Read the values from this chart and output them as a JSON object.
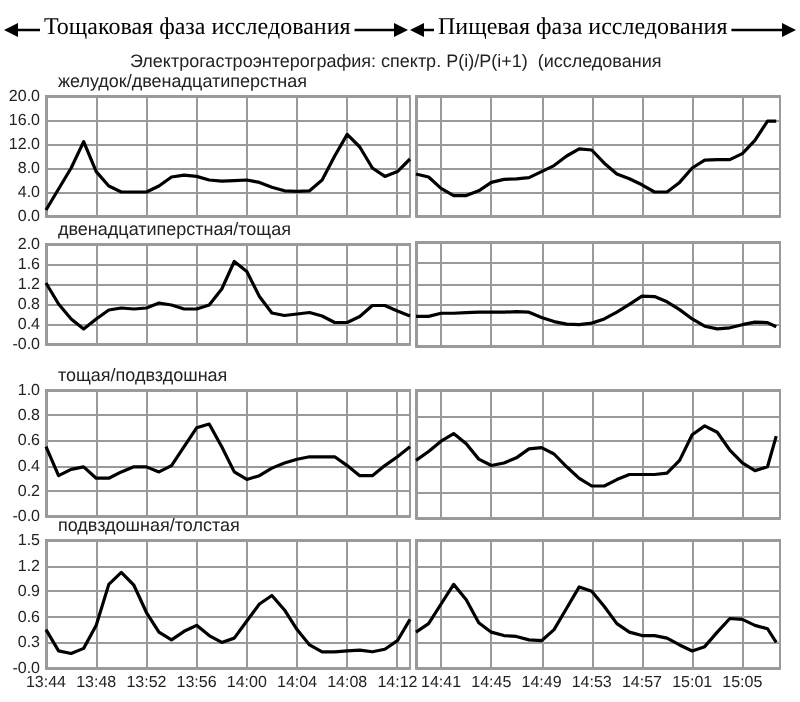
{
  "chart_data": [
    {
      "type": "line",
      "title": "Тощаковая фаза исследования",
      "subtitle": "Электрогастроэнтерография: спектр. P(i)/P(i+1)  (исследования",
      "ylabel": "желудок/двенадцатиперстная",
      "color": "#000000",
      "marker": "none",
      "grid": true,
      "tick_labels": "y",
      "x": [
        13.7333,
        13.75,
        13.7667,
        13.7833,
        13.8,
        13.8167,
        13.8333,
        13.85,
        13.8667,
        13.8833,
        13.9,
        13.9167,
        13.9333,
        13.95,
        13.9667,
        13.9833,
        14,
        14.0167,
        14.0333,
        14.05,
        14.0667,
        14.0833,
        14.1,
        14.1167,
        14.1333,
        14.15,
        14.1667,
        14.1833,
        14.2,
        14.2167
      ],
      "values": [
        1.0,
        4.5,
        8.0,
        12.4,
        7.4,
        5.0,
        4.0,
        4.0,
        4.0,
        5.0,
        6.5,
        6.8,
        6.6,
        6.0,
        5.8,
        5.9,
        6.0,
        5.6,
        4.8,
        4.2,
        4.1,
        4.2,
        6.0,
        10.0,
        13.6,
        11.5,
        8.0,
        6.6,
        7.4,
        9.5
      ],
      "xlim": [
        13.7333,
        14.2167
      ],
      "xticks": [
        13.7333,
        13.8,
        13.8667,
        13.9333,
        14,
        14.0667,
        14.1333,
        14.2
      ],
      "ylim": [
        0,
        20
      ],
      "yticks": [
        {
          "value": 0,
          "label": "0.0"
        },
        {
          "value": 4,
          "label": "4.0"
        },
        {
          "value": 8,
          "label": "8.0"
        },
        {
          "value": 12,
          "label": "12.0"
        },
        {
          "value": 16,
          "label": "16.0"
        },
        {
          "value": 20,
          "label": "20.0"
        }
      ]
    },
    {
      "type": "line",
      "title": "Пищевая фаза исследования",
      "color": "#000000",
      "marker": "none",
      "grid": true,
      "tick_labels": false,
      "x": [
        14.65,
        14.6667,
        14.6833,
        14.7,
        14.7167,
        14.7333,
        14.75,
        14.7667,
        14.7833,
        14.8,
        14.8167,
        14.8333,
        14.85,
        14.8667,
        14.8833,
        14.9,
        14.9167,
        14.9333,
        14.95,
        14.9667,
        14.9833,
        15,
        15.0167,
        15.0333,
        15.05,
        15.0667,
        15.0833,
        15.1,
        15.1167,
        15.1283
      ],
      "values": [
        7.0,
        6.5,
        4.6,
        3.4,
        3.4,
        4.2,
        5.6,
        6.1,
        6.2,
        6.4,
        7.4,
        8.4,
        10.0,
        11.2,
        11.0,
        8.8,
        7.0,
        6.2,
        5.2,
        4.0,
        4.0,
        5.6,
        8.0,
        9.3,
        9.4,
        9.4,
        10.4,
        12.6,
        15.8,
        15.8
      ],
      "xlim": [
        14.65,
        15.1333
      ],
      "xticks": [
        14.6833,
        14.75,
        14.8167,
        14.8833,
        14.95,
        15.0167,
        15.0833
      ],
      "ylim": [
        0,
        20
      ],
      "yticks": [
        0,
        4,
        8,
        12,
        16,
        20
      ]
    },
    {
      "type": "line",
      "ylabel": "двенадцатиперстная/тощая",
      "color": "#000000",
      "marker": "none",
      "grid": true,
      "tick_labels": "y",
      "x": [
        13.7333,
        13.75,
        13.7667,
        13.7833,
        13.8,
        13.8167,
        13.8333,
        13.85,
        13.8667,
        13.8833,
        13.9,
        13.9167,
        13.9333,
        13.95,
        13.9667,
        13.9833,
        14,
        14.0167,
        14.0333,
        14.05,
        14.0667,
        14.0833,
        14.1,
        14.1167,
        14.1333,
        14.15,
        14.1667,
        14.1833,
        14.2,
        14.2167
      ],
      "values": [
        1.22,
        0.8,
        0.5,
        0.3,
        0.5,
        0.68,
        0.72,
        0.7,
        0.72,
        0.82,
        0.78,
        0.7,
        0.7,
        0.78,
        1.1,
        1.65,
        1.45,
        0.95,
        0.62,
        0.57,
        0.6,
        0.63,
        0.56,
        0.43,
        0.43,
        0.55,
        0.77,
        0.77,
        0.66,
        0.56
      ],
      "xlim": [
        13.7333,
        14.2167
      ],
      "xticks": [
        13.7333,
        13.8,
        13.8667,
        13.9333,
        14,
        14.0667,
        14.1333,
        14.2
      ],
      "ylim": [
        0,
        2
      ],
      "yticks": [
        {
          "value": 0,
          "label": "-0.0"
        },
        0.4,
        0.8,
        1.2,
        1.6,
        {
          "value": 2,
          "label": "2.0"
        }
      ]
    },
    {
      "type": "line",
      "color": "#000000",
      "marker": "none",
      "grid": true,
      "tick_labels": false,
      "x": [
        14.65,
        14.6667,
        14.6833,
        14.7,
        14.7167,
        14.7333,
        14.75,
        14.7667,
        14.7833,
        14.8,
        14.8167,
        14.8333,
        14.85,
        14.8667,
        14.8833,
        14.9,
        14.9167,
        14.9333,
        14.95,
        14.9667,
        14.9833,
        15,
        15.0167,
        15.0333,
        15.05,
        15.0667,
        15.0833,
        15.1,
        15.1167,
        15.1283
      ],
      "values": [
        0.57,
        0.57,
        0.63,
        0.63,
        0.64,
        0.65,
        0.65,
        0.65,
        0.66,
        0.65,
        0.55,
        0.47,
        0.42,
        0.41,
        0.44,
        0.52,
        0.65,
        0.8,
        0.96,
        0.95,
        0.85,
        0.7,
        0.52,
        0.38,
        0.33,
        0.35,
        0.41,
        0.46,
        0.45,
        0.37
      ],
      "xlim": [
        14.65,
        15.1333
      ],
      "xticks": [
        14.6833,
        14.75,
        14.8167,
        14.8833,
        14.95,
        15.0167,
        15.0833
      ],
      "ylim": [
        0,
        2
      ],
      "yticks": [
        0,
        0.4,
        0.8,
        1.2,
        1.6,
        2
      ]
    },
    {
      "type": "line",
      "ylabel": "тощая/подвздошная",
      "color": "#000000",
      "marker": "none",
      "grid": true,
      "tick_labels": "y",
      "x": [
        13.7333,
        13.75,
        13.7667,
        13.7833,
        13.8,
        13.8167,
        13.8333,
        13.85,
        13.8667,
        13.8833,
        13.9,
        13.9167,
        13.9333,
        13.95,
        13.9667,
        13.9833,
        14,
        14.0167,
        14.0333,
        14.05,
        14.0667,
        14.0833,
        14.1,
        14.1167,
        14.1333,
        14.15,
        14.1667,
        14.1833,
        14.2,
        14.2167
      ],
      "values": [
        0.55,
        0.32,
        0.37,
        0.39,
        0.3,
        0.3,
        0.35,
        0.39,
        0.39,
        0.35,
        0.4,
        0.55,
        0.7,
        0.73,
        0.55,
        0.35,
        0.29,
        0.32,
        0.38,
        0.42,
        0.45,
        0.47,
        0.47,
        0.47,
        0.4,
        0.32,
        0.32,
        0.4,
        0.47,
        0.55
      ],
      "xlim": [
        13.7333,
        14.2167
      ],
      "xticks": [
        13.7333,
        13.8,
        13.8667,
        13.9333,
        14,
        14.0667,
        14.1333,
        14.2
      ],
      "ylim": [
        0,
        1
      ],
      "yticks": [
        {
          "value": 0,
          "label": "-0.0"
        },
        0.2,
        0.4,
        0.6,
        0.8,
        {
          "value": 1,
          "label": "1.0"
        }
      ]
    },
    {
      "type": "line",
      "color": "#000000",
      "marker": "none",
      "grid": true,
      "tick_labels": false,
      "x": [
        14.65,
        14.6667,
        14.6833,
        14.7,
        14.7167,
        14.7333,
        14.75,
        14.7667,
        14.7833,
        14.8,
        14.8167,
        14.8333,
        14.85,
        14.8667,
        14.8833,
        14.9,
        14.9167,
        14.9333,
        14.95,
        14.9667,
        14.9833,
        15,
        15.0167,
        15.0333,
        15.05,
        15.0667,
        15.0833,
        15.1,
        15.1167,
        15.1283
      ],
      "values": [
        0.45,
        0.52,
        0.6,
        0.66,
        0.58,
        0.46,
        0.41,
        0.43,
        0.47,
        0.54,
        0.55,
        0.5,
        0.4,
        0.31,
        0.25,
        0.25,
        0.3,
        0.34,
        0.34,
        0.34,
        0.35,
        0.45,
        0.65,
        0.72,
        0.67,
        0.53,
        0.43,
        0.37,
        0.4,
        0.64
      ],
      "xlim": [
        14.65,
        15.1333
      ],
      "xticks": [
        14.6833,
        14.75,
        14.8167,
        14.8833,
        14.95,
        15.0167,
        15.0833
      ],
      "ylim": [
        0,
        1
      ],
      "yticks": [
        0,
        0.2,
        0.4,
        0.6,
        0.8,
        1
      ]
    },
    {
      "type": "line",
      "ylabel": "подвздошная/толстая",
      "color": "#000000",
      "marker": "none",
      "grid": true,
      "x": [
        13.7333,
        13.75,
        13.7667,
        13.7833,
        13.8,
        13.8167,
        13.8333,
        13.85,
        13.8667,
        13.8833,
        13.9,
        13.9167,
        13.9333,
        13.95,
        13.9667,
        13.9833,
        14,
        14.0167,
        14.0333,
        14.05,
        14.0667,
        14.0833,
        14.1,
        14.1167,
        14.1333,
        14.15,
        14.1667,
        14.1833,
        14.2,
        14.2167
      ],
      "values": [
        0.45,
        0.2,
        0.17,
        0.23,
        0.5,
        0.98,
        1.12,
        0.97,
        0.65,
        0.42,
        0.33,
        0.43,
        0.5,
        0.38,
        0.3,
        0.35,
        0.55,
        0.75,
        0.85,
        0.68,
        0.45,
        0.27,
        0.19,
        0.19,
        0.2,
        0.21,
        0.19,
        0.22,
        0.32,
        0.57
      ],
      "xlim": [
        13.7333,
        14.2167
      ],
      "xticks": [
        {
          "value": 13.7333,
          "label": "13:44"
        },
        {
          "value": 13.8,
          "label": "13:48"
        },
        {
          "value": 13.8667,
          "label": "13:52"
        },
        {
          "value": 13.9333,
          "label": "13:56"
        },
        {
          "value": 14,
          "label": "14:00"
        },
        {
          "value": 14.0667,
          "label": "14:04"
        },
        {
          "value": 14.1333,
          "label": "14:08"
        },
        {
          "value": 14.2,
          "label": "14:12"
        }
      ],
      "ylim": [
        0,
        1.5
      ],
      "yticks": [
        {
          "value": 0,
          "label": "-0.0"
        },
        0.3,
        0.6,
        0.9,
        1.2,
        1.5
      ]
    },
    {
      "type": "line",
      "color": "#000000",
      "marker": "none",
      "grid": true,
      "tick_labels": "x",
      "x": [
        14.65,
        14.6667,
        14.6833,
        14.7,
        14.7167,
        14.7333,
        14.75,
        14.7667,
        14.7833,
        14.8,
        14.8167,
        14.8333,
        14.85,
        14.8667,
        14.8833,
        14.9,
        14.9167,
        14.9333,
        14.95,
        14.9667,
        14.9833,
        15,
        15.0167,
        15.0333,
        15.05,
        15.0667,
        15.0833,
        15.1,
        15.1167,
        15.1283
      ],
      "values": [
        0.42,
        0.52,
        0.75,
        0.98,
        0.8,
        0.53,
        0.42,
        0.38,
        0.37,
        0.33,
        0.32,
        0.45,
        0.7,
        0.95,
        0.9,
        0.72,
        0.52,
        0.42,
        0.38,
        0.38,
        0.35,
        0.27,
        0.2,
        0.25,
        0.42,
        0.58,
        0.57,
        0.5,
        0.46,
        0.3
      ],
      "xlim": [
        14.65,
        15.1333
      ],
      "xticks": [
        {
          "value": 14.6833,
          "label": "14:41"
        },
        {
          "value": 14.75,
          "label": "14:45"
        },
        {
          "value": 14.8167,
          "label": "14:49"
        },
        {
          "value": 14.8833,
          "label": "14:53"
        },
        {
          "value": 14.95,
          "label": "14:57"
        },
        {
          "value": 15.0167,
          "label": "15:01"
        },
        {
          "value": 15.0833,
          "label": "15:05"
        }
      ],
      "ylim": [
        0,
        1.5
      ],
      "yticks": [
        0,
        0.3,
        0.6,
        0.9,
        1.2,
        1.5
      ]
    }
  ]
}
